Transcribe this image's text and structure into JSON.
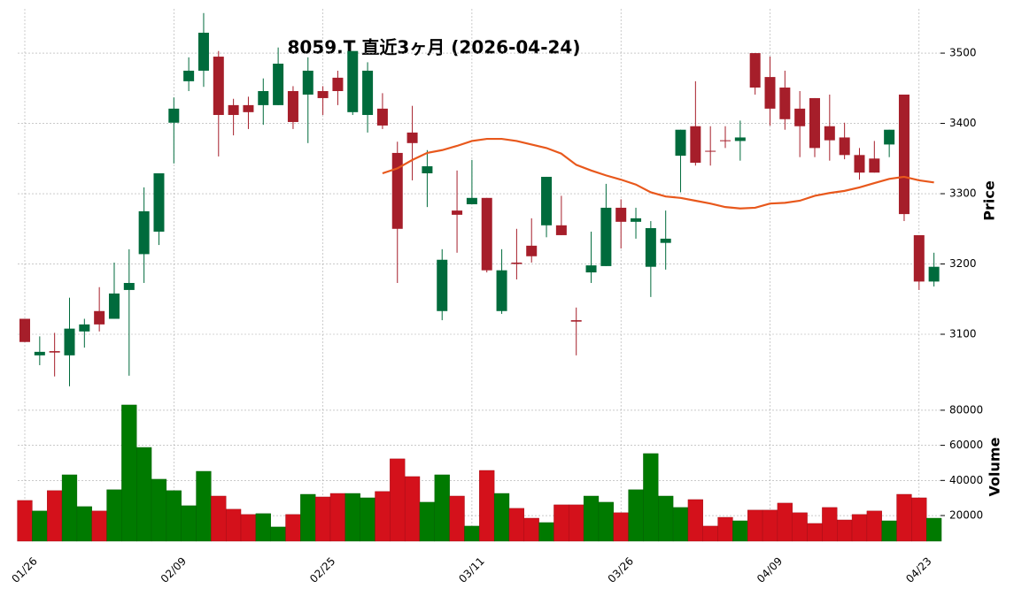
{
  "chart_data": {
    "type": "candlestick",
    "title": "8059.T 直近3ヶ月 (2026-04-24)",
    "ylabel": "Price",
    "y2label": "Volume",
    "categories": [
      "01/26",
      null,
      null,
      null,
      null,
      null,
      null,
      null,
      null,
      null,
      "02/09",
      null,
      null,
      null,
      null,
      null,
      null,
      null,
      null,
      null,
      "02/25",
      null,
      null,
      null,
      null,
      null,
      null,
      null,
      null,
      null,
      "03/11",
      null,
      null,
      null,
      null,
      null,
      null,
      null,
      null,
      null,
      "03/26",
      null,
      null,
      null,
      null,
      null,
      null,
      null,
      null,
      null,
      "04/09",
      null,
      null,
      null,
      null,
      null,
      null,
      null,
      null,
      null,
      "04/23",
      null
    ],
    "open": [
      3122,
      3070,
      3076,
      3070,
      3104,
      3133,
      3122,
      3163,
      3214,
      3246,
      3401,
      3460,
      3475,
      3495,
      3426,
      3426,
      3426,
      3426,
      3446,
      3441,
      3446,
      3465,
      3416,
      3412,
      3421,
      3358,
      3387,
      3329,
      3133,
      3276,
      3285,
      3294,
      3133,
      3202,
      3226,
      3255,
      3255,
      3120,
      3188,
      3197,
      3280,
      3260,
      3196,
      3230,
      3354,
      3396,
      3361,
      3376,
      3375,
      3500,
      3466,
      3451,
      3421,
      3436,
      3396,
      3380,
      3355,
      3350,
      3370,
      3441,
      3241,
      3175
    ],
    "high": [
      3122,
      3097,
      3102,
      3152,
      3122,
      3167,
      3202,
      3221,
      3309,
      3329,
      3437,
      3494,
      3557,
      3503,
      3435,
      3438,
      3464,
      3508,
      3453,
      3494,
      3453,
      3475,
      3503,
      3487,
      3443,
      3374,
      3425,
      3362,
      3221,
      3333,
      3348,
      3294,
      3221,
      3250,
      3265,
      3324,
      3297,
      3138,
      3246,
      3314,
      3292,
      3280,
      3261,
      3276,
      3391,
      3460,
      3396,
      3396,
      3404,
      3500,
      3495,
      3475,
      3446,
      3436,
      3441,
      3401,
      3365,
      3375,
      3391,
      3441,
      3241,
      3216
    ],
    "low": [
      3089,
      3056,
      3040,
      3026,
      3081,
      3104,
      3122,
      3041,
      3173,
      3227,
      3343,
      3446,
      3452,
      3353,
      3383,
      3392,
      3398,
      3426,
      3392,
      3372,
      3412,
      3426,
      3412,
      3387,
      3392,
      3173,
      3319,
      3281,
      3120,
      3216,
      3285,
      3188,
      3129,
      3178,
      3202,
      3238,
      3241,
      3070,
      3173,
      3197,
      3222,
      3236,
      3153,
      3192,
      3302,
      3340,
      3340,
      3365,
      3347,
      3441,
      3397,
      3391,
      3352,
      3352,
      3347,
      3349,
      3320,
      3330,
      3352,
      3261,
      3163,
      3168
    ],
    "close": [
      3089,
      3075,
      3074,
      3108,
      3114,
      3114,
      3158,
      3173,
      3275,
      3329,
      3421,
      3475,
      3529,
      3412,
      3412,
      3416,
      3446,
      3485,
      3402,
      3475,
      3436,
      3446,
      3503,
      3475,
      3397,
      3250,
      3372,
      3339,
      3206,
      3270,
      3294,
      3191,
      3191,
      3200,
      3211,
      3324,
      3241,
      3118,
      3198,
      3280,
      3260,
      3265,
      3251,
      3236,
      3391,
      3344,
      3360,
      3375,
      3380,
      3451,
      3421,
      3406,
      3396,
      3365,
      3376,
      3355,
      3330,
      3330,
      3391,
      3271,
      3175,
      3196
    ],
    "volume": [
      28600,
      22600,
      34200,
      43200,
      25100,
      22600,
      34700,
      83000,
      58800,
      40700,
      34200,
      25600,
      45200,
      31100,
      23600,
      20600,
      21100,
      13500,
      20600,
      32100,
      30600,
      32600,
      32600,
      30100,
      33700,
      52300,
      42200,
      27600,
      43200,
      31100,
      14000,
      45700,
      32600,
      24100,
      18500,
      16000,
      26100,
      26100,
      31100,
      27600,
      21600,
      34700,
      55300,
      31100,
      24600,
      29100,
      14000,
      19000,
      17000,
      23100,
      23100,
      27100,
      21600,
      15500,
      24600,
      17500,
      20600,
      22600,
      17000,
      32100,
      30100,
      18500
    ],
    "ma": {
      "color": "#e8581c",
      "values": [
        null,
        null,
        null,
        null,
        null,
        null,
        null,
        null,
        null,
        null,
        null,
        null,
        null,
        null,
        null,
        null,
        null,
        null,
        null,
        null,
        null,
        null,
        null,
        null,
        3329,
        3336,
        3348,
        3358,
        3362,
        3368,
        3375,
        3378,
        3378,
        3375,
        3370,
        3365,
        3357,
        3341,
        3333,
        3326,
        3320,
        3313,
        3302,
        3296,
        3294,
        3290,
        3286,
        3281,
        3279,
        3280,
        3286,
        3287,
        3290,
        3297,
        3301,
        3304,
        3309,
        3315,
        3321,
        3324,
        3319,
        3316
      ]
    },
    "up_color": "#006b3c",
    "down_color": "#a61e2a",
    "volume_up_color": "#007a00",
    "volume_down_color": "#d4111b",
    "ylim": [
      3022,
      3563
    ],
    "yticks": [
      3100,
      3200,
      3300,
      3400,
      3500
    ],
    "y2lim": [
      5400,
      87000
    ],
    "y2ticks": [
      20000,
      40000,
      60000,
      80000
    ],
    "grid": true
  }
}
